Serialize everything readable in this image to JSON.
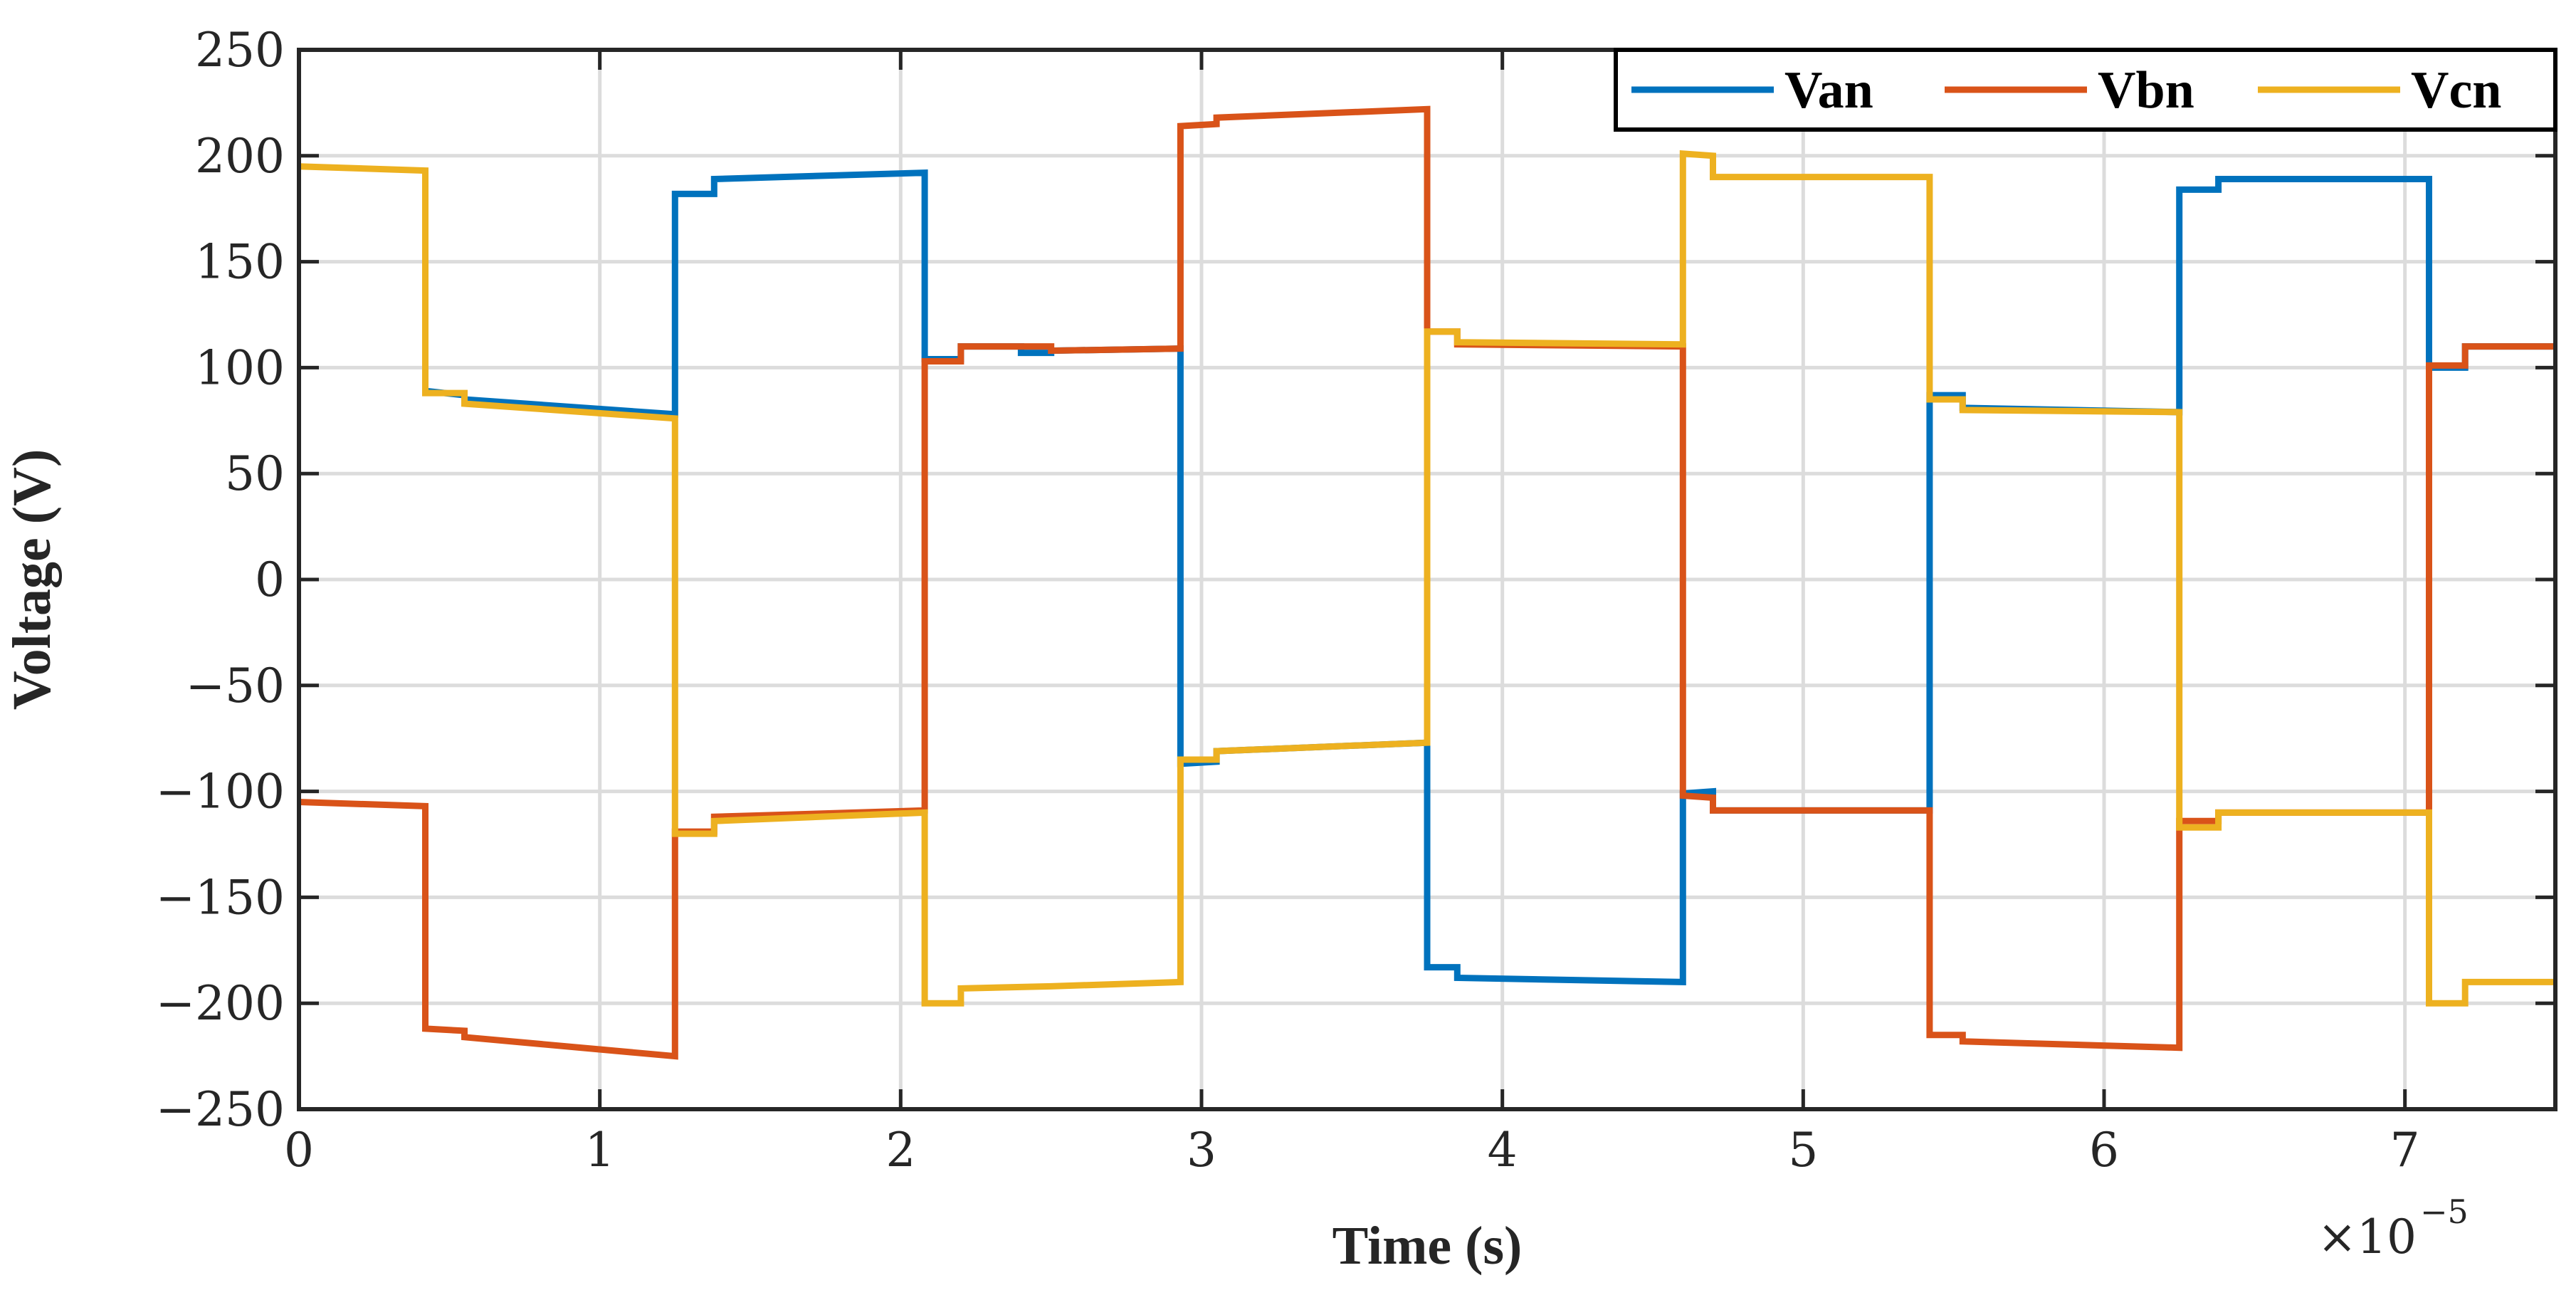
{
  "chart_data": {
    "type": "line",
    "title": "",
    "xlabel": "Time (s)",
    "ylabel": "Voltage (V)",
    "x_multiplier": {
      "base": "×10",
      "exponent": "−5"
    },
    "xlim": [
      0,
      7.5
    ],
    "ylim": [
      -250,
      250
    ],
    "xticks": [
      0,
      1,
      2,
      3,
      4,
      5,
      6,
      7
    ],
    "xtick_labels": [
      "0",
      "1",
      "2",
      "3",
      "4",
      "5",
      "6",
      "7"
    ],
    "yticks": [
      250,
      200,
      150,
      100,
      50,
      0,
      -50,
      -100,
      -150,
      -200,
      -250
    ],
    "ytick_labels": [
      "250",
      "200",
      "150",
      "100",
      "50",
      "0",
      "−50",
      "−100",
      "−150",
      "−200",
      "−250"
    ],
    "grid": true,
    "legend_position": "top-right",
    "series": [
      {
        "name": "Van",
        "color": "#0072BD",
        "points": [
          [
            0.42,
            89
          ],
          [
            0.55,
            87
          ],
          [
            0.55,
            85
          ],
          [
            1.25,
            78
          ],
          [
            1.25,
            182
          ],
          [
            1.38,
            182
          ],
          [
            1.38,
            189
          ],
          [
            2.08,
            192
          ],
          [
            2.08,
            104
          ],
          [
            2.2,
            104
          ],
          [
            2.2,
            110
          ],
          [
            2.4,
            110
          ],
          [
            2.4,
            107
          ],
          [
            2.5,
            107
          ],
          [
            2.5,
            108
          ],
          [
            2.93,
            109
          ],
          [
            2.93,
            -87
          ],
          [
            3.05,
            -86
          ],
          [
            3.05,
            -81
          ],
          [
            3.75,
            -77
          ],
          [
            3.75,
            -183
          ],
          [
            3.85,
            -183
          ],
          [
            3.85,
            -188
          ],
          [
            4.6,
            -190
          ],
          [
            4.6,
            -101
          ],
          [
            4.7,
            -100
          ],
          [
            4.7,
            -109
          ],
          [
            5.42,
            -109
          ],
          [
            5.42,
            87
          ],
          [
            5.53,
            87
          ],
          [
            5.53,
            81
          ],
          [
            6.25,
            79
          ],
          [
            6.25,
            184
          ],
          [
            6.38,
            184
          ],
          [
            6.38,
            189
          ],
          [
            7.08,
            189
          ],
          [
            7.08,
            100
          ],
          [
            7.2,
            100
          ],
          [
            7.2,
            110
          ],
          [
            7.5,
            110
          ]
        ]
      },
      {
        "name": "Vbn",
        "color": "#D95319",
        "points": [
          [
            0,
            -105
          ],
          [
            0.42,
            -107
          ],
          [
            0.42,
            -212
          ],
          [
            0.55,
            -213
          ],
          [
            0.55,
            -216
          ],
          [
            1.25,
            -225
          ],
          [
            1.25,
            -119
          ],
          [
            1.38,
            -119
          ],
          [
            1.38,
            -112
          ],
          [
            2.08,
            -109
          ],
          [
            2.08,
            103
          ],
          [
            2.2,
            103
          ],
          [
            2.2,
            110
          ],
          [
            2.5,
            110
          ],
          [
            2.5,
            108
          ],
          [
            2.93,
            109
          ],
          [
            2.93,
            214
          ],
          [
            3.05,
            215
          ],
          [
            3.05,
            218
          ],
          [
            3.75,
            222
          ],
          [
            3.75,
            117
          ],
          [
            3.85,
            117
          ],
          [
            3.85,
            111
          ],
          [
            4.6,
            110
          ],
          [
            4.6,
            -102
          ],
          [
            4.7,
            -103
          ],
          [
            4.7,
            -109
          ],
          [
            5.42,
            -109
          ],
          [
            5.42,
            -215
          ],
          [
            5.53,
            -215
          ],
          [
            5.53,
            -218
          ],
          [
            6.25,
            -221
          ],
          [
            6.25,
            -114
          ],
          [
            6.38,
            -114
          ],
          [
            6.38,
            -110
          ],
          [
            7.08,
            -110
          ],
          [
            7.08,
            101
          ],
          [
            7.2,
            101
          ],
          [
            7.2,
            110
          ],
          [
            7.5,
            110
          ]
        ]
      },
      {
        "name": "Vcn",
        "color": "#EDB120",
        "points": [
          [
            0,
            195
          ],
          [
            0.42,
            193
          ],
          [
            0.42,
            88
          ],
          [
            0.55,
            88
          ],
          [
            0.55,
            83
          ],
          [
            1.25,
            76
          ],
          [
            1.25,
            -120
          ],
          [
            1.38,
            -120
          ],
          [
            1.38,
            -114
          ],
          [
            2.08,
            -110
          ],
          [
            2.08,
            -200
          ],
          [
            2.2,
            -200
          ],
          [
            2.2,
            -193
          ],
          [
            2.5,
            -192
          ],
          [
            2.93,
            -190
          ],
          [
            2.93,
            -85
          ],
          [
            3.05,
            -85
          ],
          [
            3.05,
            -81
          ],
          [
            3.75,
            -77
          ],
          [
            3.75,
            117
          ],
          [
            3.85,
            117
          ],
          [
            3.85,
            112
          ],
          [
            4.6,
            111
          ],
          [
            4.6,
            201
          ],
          [
            4.7,
            200
          ],
          [
            4.7,
            190
          ],
          [
            5.42,
            190
          ],
          [
            5.42,
            85
          ],
          [
            5.53,
            85
          ],
          [
            5.53,
            80
          ],
          [
            6.25,
            79
          ],
          [
            6.25,
            -117
          ],
          [
            6.38,
            -117
          ],
          [
            6.38,
            -110
          ],
          [
            7.08,
            -110
          ],
          [
            7.08,
            -200
          ],
          [
            7.2,
            -200
          ],
          [
            7.2,
            -190
          ],
          [
            7.5,
            -190
          ]
        ]
      }
    ]
  }
}
